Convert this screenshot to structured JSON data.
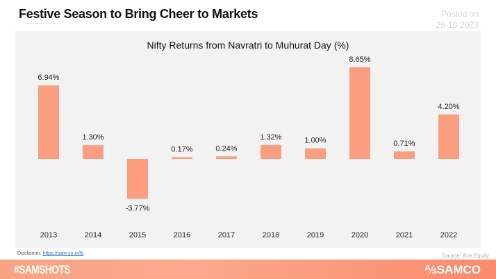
{
  "header": {
    "title": "Festive Season to Bring Cheer to Markets",
    "posted_label": "Posted on",
    "posted_date": "26-10-2023"
  },
  "chart_data": {
    "type": "bar",
    "title": "Nifty Returns from Navratri to Muhurat Day (%)",
    "categories": [
      "2013",
      "2014",
      "2015",
      "2016",
      "2017",
      "2018",
      "2019",
      "2020",
      "2021",
      "2022"
    ],
    "values": [
      6.94,
      1.3,
      -3.77,
      0.17,
      0.24,
      1.32,
      1.0,
      8.65,
      0.71,
      4.2
    ],
    "labels": [
      "6.94%",
      "1.30%",
      "-3.77%",
      "0.17%",
      "0.24%",
      "1.32%",
      "1.00%",
      "8.65%",
      "0.71%",
      "4.20%"
    ],
    "bar_color": "#fb9e7f",
    "grid": false,
    "legend": "none"
  },
  "footer": {
    "disclaimer_label": "Disclaimer:",
    "disclaimer_link": "https://sam-co.in/6j",
    "source": "Source:  Ace Equity",
    "hashtag": "#SAMSHOTS",
    "brand": "SAMCO",
    "brand_icon": "samco-logo-icon"
  }
}
